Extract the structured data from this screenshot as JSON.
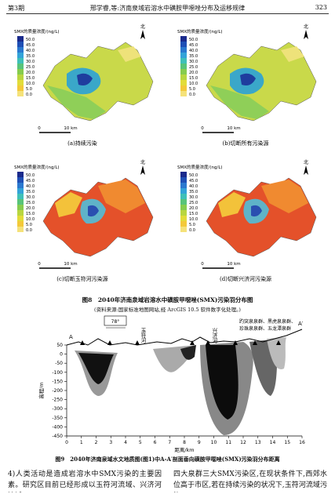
{
  "header": {
    "issue": "第3期",
    "title": "邢学睿,等:济南泉域岩溶水中磺胺甲噁唑分布及运移规律",
    "page": "323"
  },
  "figure8": {
    "legend_title": "SMX的质量浓度/(ng/L)",
    "legend_labels": [
      "50.0",
      "45.0",
      "40.0",
      "35.0",
      "30.0",
      "25.0",
      "20.0",
      "15.0",
      "10.0",
      "5.0",
      "0.0"
    ],
    "north": "北",
    "scale": [
      "0",
      "10 km"
    ],
    "panels": [
      "(a)持续污染",
      "(b)切断所有污染源",
      "(c)切断玉符河污染源",
      "(d)切断兴济河污染源"
    ],
    "caption": "图8　2040年济南泉域岩溶水中磺胺甲噁唑(SMX)污染羽分布图",
    "source": "(资料来源:国家标准地图网站,经 ArcGIS 10.5 软件数字化处理。)"
  },
  "figure9": {
    "angle": "78°",
    "rivers": [
      "玉符河",
      "兴济河"
    ],
    "springs": [
      "趵突泉泉群、黑虎泉泉群、",
      "珍珠泉泉群、五龙潭泉群"
    ],
    "points": [
      "A",
      "A′"
    ],
    "ylabel": "高程/m",
    "xlabel": "距离/km",
    "yticks": [
      50,
      0,
      -50,
      -100,
      -150,
      -200,
      -250,
      -300,
      -350,
      -400,
      -450
    ],
    "xticks": [
      0,
      1,
      2,
      3,
      4,
      5,
      6,
      7,
      8,
      9,
      10,
      11,
      12,
      13,
      14,
      15,
      16
    ],
    "caption": "图9　2040年济南泉域水文地质图(图1)中A-A′剖面垂向磺胺甲噁唑(SMX)污染羽分布距离"
  },
  "body": {
    "left": "4)人类活动是造成岩溶水中SMX污染的主要因素。研究区目前已经形成以玉符河流域、兴济河流域、",
    "right": "四大泉群三大SMX污染区,在现状条件下,西郊水位高于市区,若在持续污染的状况下,玉符河流域污染"
  }
}
